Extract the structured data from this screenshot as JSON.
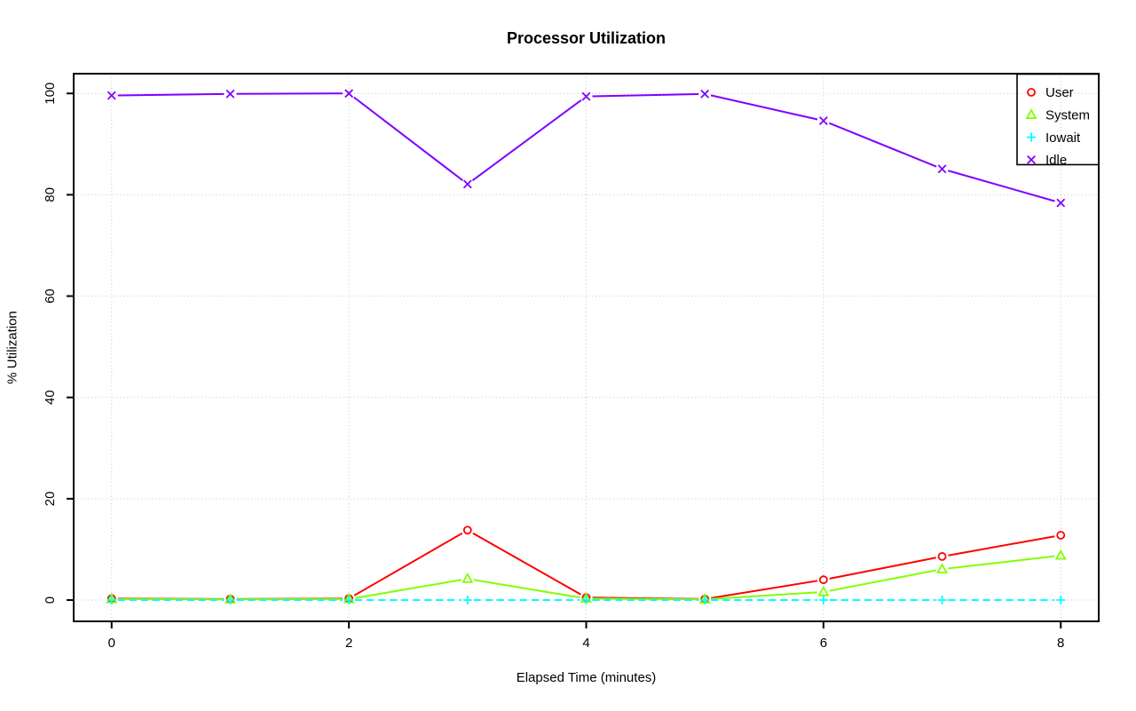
{
  "chart_data": {
    "type": "line",
    "title": "Processor Utilization",
    "xlabel": "Elapsed Time (minutes)",
    "ylabel": "% Utilization",
    "x": [
      0,
      1,
      2,
      3,
      4,
      5,
      6,
      7,
      8
    ],
    "xlim": [
      -0.32,
      8.32
    ],
    "ylim": [
      -4.2,
      103.9
    ],
    "xticks": [
      0,
      2,
      4,
      6,
      8
    ],
    "yticks": [
      0,
      20,
      40,
      60,
      80,
      100
    ],
    "grid": "dotted light-gray at every tick, both axes",
    "legend_position": "top-right",
    "legend_transparent": true,
    "series": [
      {
        "name": "User",
        "color": "#FF0000",
        "marker": "circle",
        "line": "solid",
        "values": [
          0.3,
          0.2,
          0.3,
          13.8,
          0.5,
          0.2,
          4.0,
          8.6,
          12.8
        ]
      },
      {
        "name": "System",
        "color": "#80FF00",
        "marker": "triangle",
        "line": "solid",
        "values": [
          0.2,
          0.15,
          0.2,
          4.2,
          0.3,
          0.15,
          1.6,
          6.1,
          8.8
        ]
      },
      {
        "name": "Iowait",
        "color": "#00FFFF",
        "marker": "plus",
        "line": "dashed",
        "values": [
          0,
          0,
          0,
          0,
          0,
          0,
          0,
          0,
          0
        ]
      },
      {
        "name": "Idle",
        "color": "#8000FF",
        "marker": "x",
        "line": "solid",
        "values": [
          99.6,
          99.9,
          100,
          82.1,
          99.4,
          99.9,
          94.6,
          85.1,
          78.4
        ]
      }
    ]
  }
}
